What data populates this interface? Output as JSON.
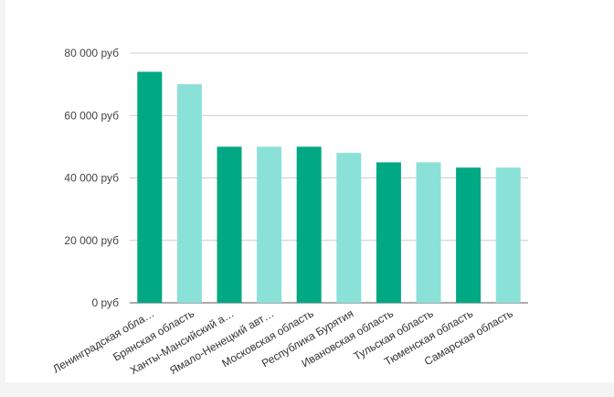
{
  "chart_data": {
    "type": "bar",
    "title": "",
    "xlabel": "",
    "ylabel": "",
    "ylim": [
      0,
      80000
    ],
    "yticks": [
      0,
      20000,
      40000,
      60000,
      80000
    ],
    "ytick_labels": [
      "0 руб",
      "20 000 руб",
      "40 000 руб",
      "60 000 руб",
      "80 000 руб"
    ],
    "categories": [
      "Ленинградская обла…",
      "Брянская область",
      "Ханты-Мансийский а…",
      "Ямало-Ненецкий авт…",
      "Московская область",
      "Республика Бурятия",
      "Ивановская область",
      "Тульская область",
      "Тюменская область",
      "Самарская область"
    ],
    "values": [
      74000,
      70000,
      50000,
      50000,
      50000,
      48000,
      45000,
      45000,
      43300,
      43300
    ],
    "colors": [
      "#00a884",
      "#8ae1d7"
    ],
    "grid": true,
    "legend": "none"
  }
}
